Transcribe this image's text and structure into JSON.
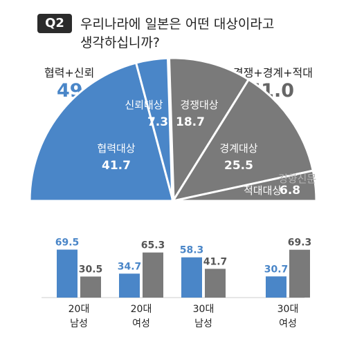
{
  "question": {
    "badge": "Q2",
    "line1": "우리나라에 일본은 어떤 대상이라고",
    "line2": "생각하십니까?"
  },
  "colors": {
    "blue": "#4a86c8",
    "gray": "#7a7a7a",
    "text": "#222222"
  },
  "watermark": "경향신문",
  "chart_data": [
    {
      "type": "pie",
      "style": "semicircle",
      "groups": [
        {
          "label": "협력+신뢰",
          "total": "49.0"
        },
        {
          "label": "경쟁+경계+적대",
          "total": "51.0"
        }
      ],
      "slices": [
        {
          "label": "협력대상",
          "value": 41.7,
          "color": "#4a86c8"
        },
        {
          "label": "신뢰대상",
          "value": 7.3,
          "color": "#4a86c8"
        },
        {
          "label": "경쟁대상",
          "value": 18.7,
          "color": "#7a7a7a"
        },
        {
          "label": "경계대상",
          "value": 25.5,
          "color": "#7a7a7a"
        },
        {
          "label": "적대대상",
          "value": 6.8,
          "color": "#7a7a7a"
        }
      ]
    },
    {
      "type": "bar",
      "categories": [
        [
          "20대",
          "남성"
        ],
        [
          "20대",
          "여성"
        ],
        [
          "30대",
          "남성"
        ],
        [
          "30대",
          "여성"
        ]
      ],
      "series": [
        {
          "values": [
            69.5,
            34.7,
            58.3,
            30.7
          ],
          "color": "#4a86c8"
        },
        {
          "values": [
            30.5,
            65.3,
            41.7,
            69.3
          ],
          "color": "#7a7a7a"
        }
      ]
    }
  ]
}
